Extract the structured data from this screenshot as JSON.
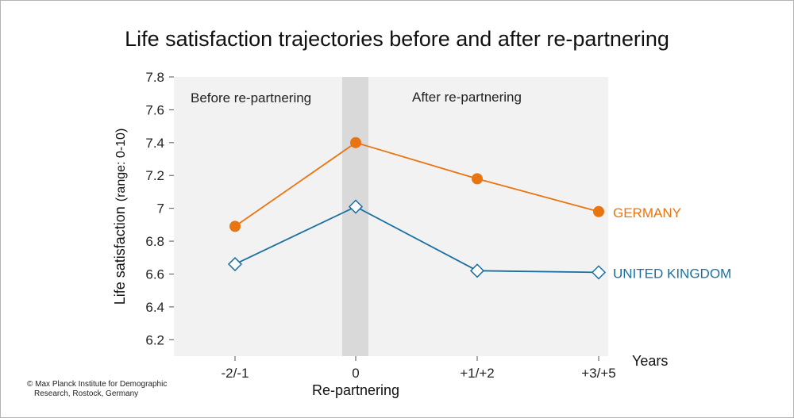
{
  "title": "Life satisfaction trajectories before and after re-partnering",
  "credit": {
    "line1": "© Max Planck Institute for Demographic",
    "line2": "Research, Rostock, Germany"
  },
  "colors": {
    "germany": "#e87511",
    "uk": "#1b6fa0",
    "panel_background": "#f2f2f2",
    "event_band": "#d9d9d9"
  },
  "chart_data": {
    "type": "line",
    "title": "Life satisfaction trajectories before and after re-partnering",
    "xlabel": "Re-partnering",
    "xlabel_right": "Years",
    "ylabel_main": "Life satisfaction",
    "ylabel_sub": "(range: 0-10)",
    "categories": [
      "-2/-1",
      "0",
      "+1/+2",
      "+3/+5"
    ],
    "ylim": [
      6.1,
      7.8
    ],
    "yticks": [
      "6.2",
      "6.4",
      "6.6",
      "6.8",
      "7",
      "7.2",
      "7.4",
      "7.6",
      "7.8"
    ],
    "regions": {
      "before": "Before re-partnering",
      "after": "After re-partnering"
    },
    "series": [
      {
        "name": "GERMANY",
        "values": [
          6.89,
          7.4,
          7.18,
          6.98
        ],
        "marker": "circle",
        "color": "#e87511"
      },
      {
        "name": "UNITED KINGDOM",
        "values": [
          6.66,
          7.01,
          6.62,
          6.61
        ],
        "marker": "diamond",
        "color": "#1b6fa0"
      }
    ],
    "grid": false,
    "legend": "direct labels at right"
  }
}
